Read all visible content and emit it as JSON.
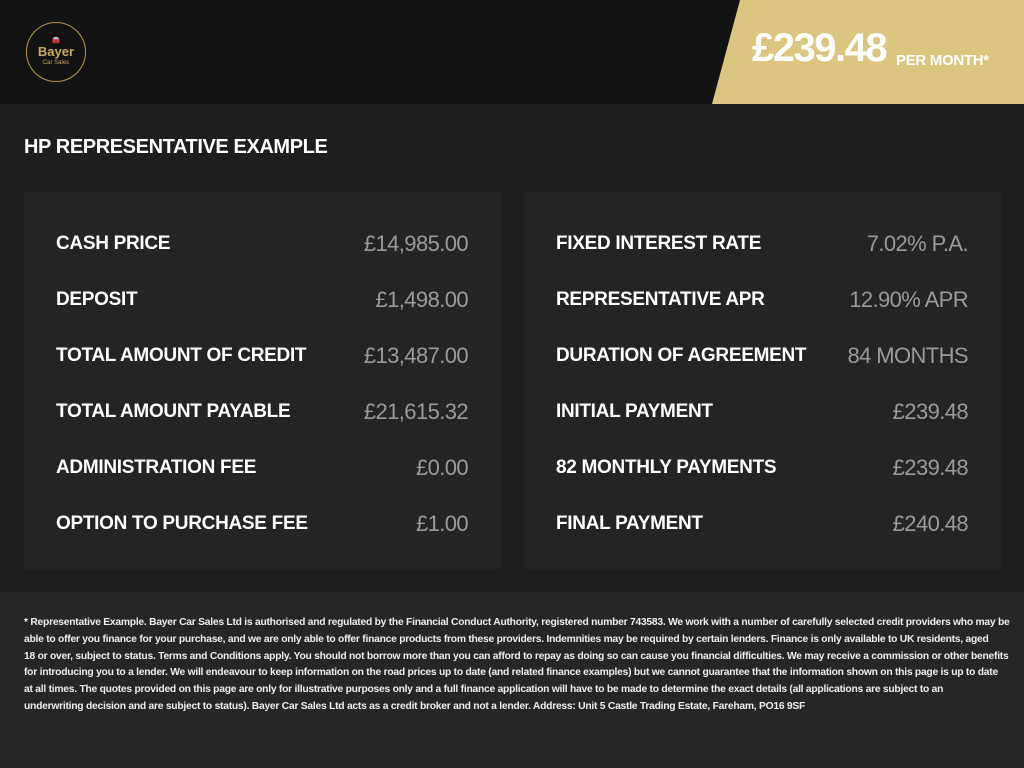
{
  "brand": {
    "name": "Bayer",
    "sub": "Car Sales"
  },
  "banner": {
    "price": "£239.48",
    "suffix": "PER MONTH*",
    "color": "#dbc57f"
  },
  "title": "HP REPRESENTATIVE EXAMPLE",
  "left": [
    {
      "label": "CASH PRICE",
      "value": "£14,985.00"
    },
    {
      "label": "DEPOSIT",
      "value": "£1,498.00"
    },
    {
      "label": "TOTAL AMOUNT OF CREDIT",
      "value": "£13,487.00"
    },
    {
      "label": "TOTAL AMOUNT PAYABLE",
      "value": "£21,615.32"
    },
    {
      "label": "ADMINISTRATION FEE",
      "value": "£0.00"
    },
    {
      "label": "OPTION TO PURCHASE FEE",
      "value": "£1.00"
    }
  ],
  "right": [
    {
      "label": "FIXED INTEREST RATE",
      "value": "7.02% P.A."
    },
    {
      "label": "REPRESENTATIVE APR",
      "value": "12.90% APR"
    },
    {
      "label": "DURATION OF AGREEMENT",
      "value": "84 MONTHS"
    },
    {
      "label": "INITIAL PAYMENT",
      "value": "£239.48"
    },
    {
      "label": "82 MONTHLY PAYMENTS",
      "value": "£239.48"
    },
    {
      "label": "FINAL PAYMENT",
      "value": "£240.48"
    }
  ],
  "disclaimer": [
    "* Representative Example. Bayer Car Sales Ltd is authorised and regulated by the Financial Conduct Authority, registered number 743583. We work with a number of carefully selected credit providers who may be",
    "able to offer you finance for your purchase, and we are only able to offer finance products from these providers. Indemnities may be required by certain lenders. Finance is only available to UK residents, aged",
    "18 or over, subject to status. Terms and Conditions apply. You should not borrow more than you can afford to repay as doing so can cause you financial difficulties. We may receive a commission or other benefits",
    "for introducing you to a lender. We will endeavour to keep information on the road prices up to date (and related finance examples) but we cannot guarantee that the information shown on this page is up to date",
    "at all times. The quotes provided on this page are only for illustrative purposes only and a full finance application will have to be made to determine the exact details (all applications are subject to an",
    "underwriting decision and are subject to status). Bayer Car Sales Ltd acts as a credit broker and not a lender. Address: Unit 5 Castle Trading Estate, Fareham, PO16 9SF"
  ]
}
